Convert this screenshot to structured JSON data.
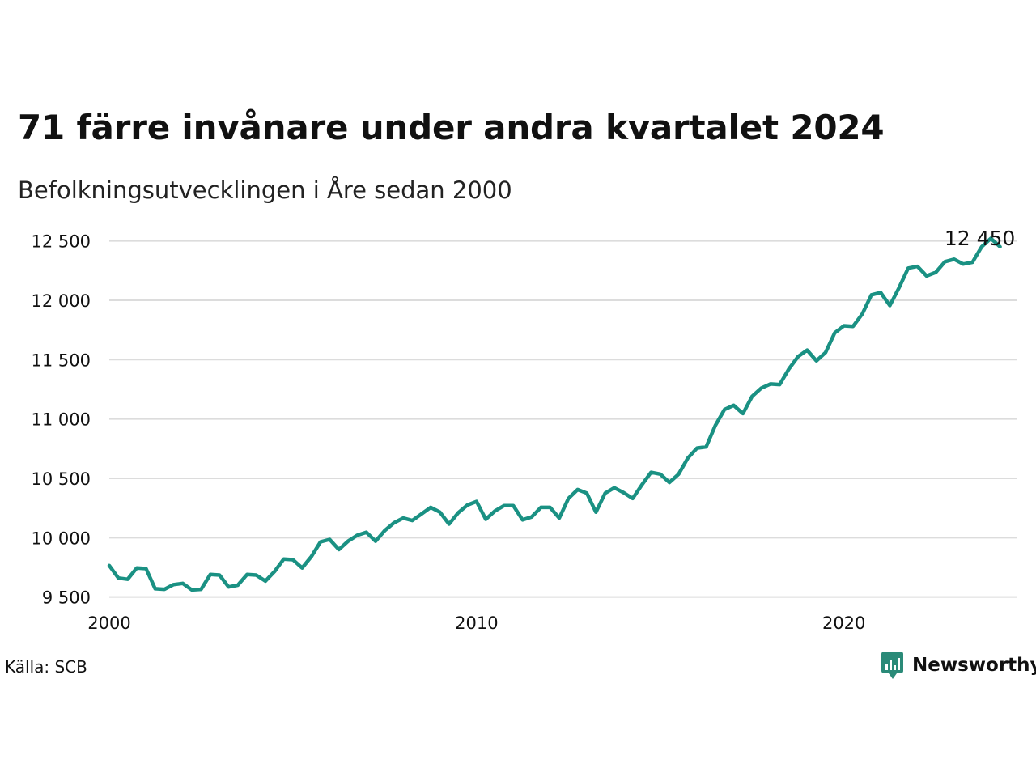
{
  "title": "71 färre invånare under andra kvartalet 2024",
  "subtitle": "Befolkningsutvecklingen i Åre sedan 2000",
  "source": "Källa: SCB",
  "brand": {
    "name": "Newsworthy",
    "color": "#2a8a78"
  },
  "chart_data": {
    "type": "line",
    "line_color": "#1a9183",
    "grid": true,
    "x_start": 2000.0,
    "x_step": 0.25,
    "xlim": [
      2000,
      2024.7
    ],
    "ylim": [
      9450,
      12620
    ],
    "x_ticks": [
      {
        "value": 2000,
        "label": "2000"
      },
      {
        "value": 2010,
        "label": "2010"
      },
      {
        "value": 2020,
        "label": "2020"
      }
    ],
    "y_ticks": [
      {
        "value": 9500,
        "label": "9 500"
      },
      {
        "value": 10000,
        "label": "10 000"
      },
      {
        "value": 10500,
        "label": "10 500"
      },
      {
        "value": 11000,
        "label": "11 000"
      },
      {
        "value": 11500,
        "label": "11 500"
      },
      {
        "value": 12000,
        "label": "12 000"
      },
      {
        "value": 12500,
        "label": "12 500"
      }
    ],
    "values": [
      9765,
      9660,
      9650,
      9745,
      9740,
      9570,
      9565,
      9605,
      9615,
      9560,
      9565,
      9690,
      9685,
      9585,
      9600,
      9690,
      9685,
      9635,
      9715,
      9820,
      9815,
      9745,
      9840,
      9965,
      9985,
      9900,
      9970,
      10020,
      10045,
      9970,
      10060,
      10125,
      10165,
      10145,
      10200,
      10255,
      10215,
      10115,
      10210,
      10275,
      10305,
      10155,
      10225,
      10270,
      10270,
      10150,
      10175,
      10255,
      10255,
      10165,
      10330,
      10405,
      10375,
      10215,
      10375,
      10420,
      10380,
      10330,
      10445,
      10550,
      10535,
      10465,
      10535,
      10670,
      10755,
      10765,
      10945,
      11080,
      11115,
      11045,
      11190,
      11260,
      11295,
      11290,
      11420,
      11525,
      11580,
      11490,
      11560,
      11725,
      11785,
      11780,
      11885,
      12045,
      12065,
      11955,
      12105,
      12270,
      12285,
      12205,
      12235,
      12325,
      12345,
      12305,
      12320,
      12450,
      12521,
      12450
    ],
    "last_value_label": "12 450"
  }
}
